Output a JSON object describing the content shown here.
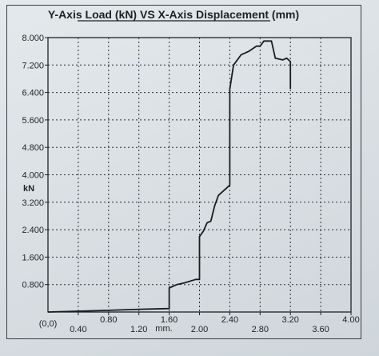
{
  "chart_data": {
    "type": "line",
    "title": "Y-Axis Load (kN) VS X-Axis Displacement (mm)",
    "ylabel": "kN",
    "xlabel": "mm.",
    "xlim": [
      0,
      4.0
    ],
    "ylim": [
      0,
      8.0
    ],
    "grid": true,
    "y_ticks": [
      "0.800",
      "1.600",
      "2.400",
      "3.200",
      "4.000",
      "4.800",
      "5.600",
      "6.400",
      "7.200",
      "8.000"
    ],
    "x_ticks_upper": [
      "0.80",
      "1.60",
      "2.40",
      "3.20",
      "4.00"
    ],
    "x_ticks_lower": [
      "0.40",
      "1.20",
      "2.00",
      "2.80",
      "3.60"
    ],
    "origin_label": "(0,0)",
    "series": [
      {
        "color": "#1a1d20",
        "x": [
          0.0,
          0.8,
          1.2,
          1.6,
          1.6,
          1.7,
          1.8,
          1.95,
          2.0,
          2.0,
          2.05,
          2.1,
          2.15,
          2.2,
          2.25,
          2.35,
          2.4,
          2.4,
          2.45,
          2.55,
          2.65,
          2.75,
          2.8,
          2.85,
          2.95,
          3.0,
          3.1,
          3.15,
          3.2,
          3.2
        ],
        "y": [
          0.0,
          0.05,
          0.08,
          0.1,
          0.7,
          0.8,
          0.85,
          0.95,
          0.95,
          2.2,
          2.35,
          2.6,
          2.65,
          3.1,
          3.4,
          3.6,
          3.7,
          6.5,
          7.2,
          7.5,
          7.6,
          7.75,
          7.75,
          7.9,
          7.9,
          7.4,
          7.35,
          7.4,
          7.3,
          6.5
        ]
      }
    ]
  }
}
